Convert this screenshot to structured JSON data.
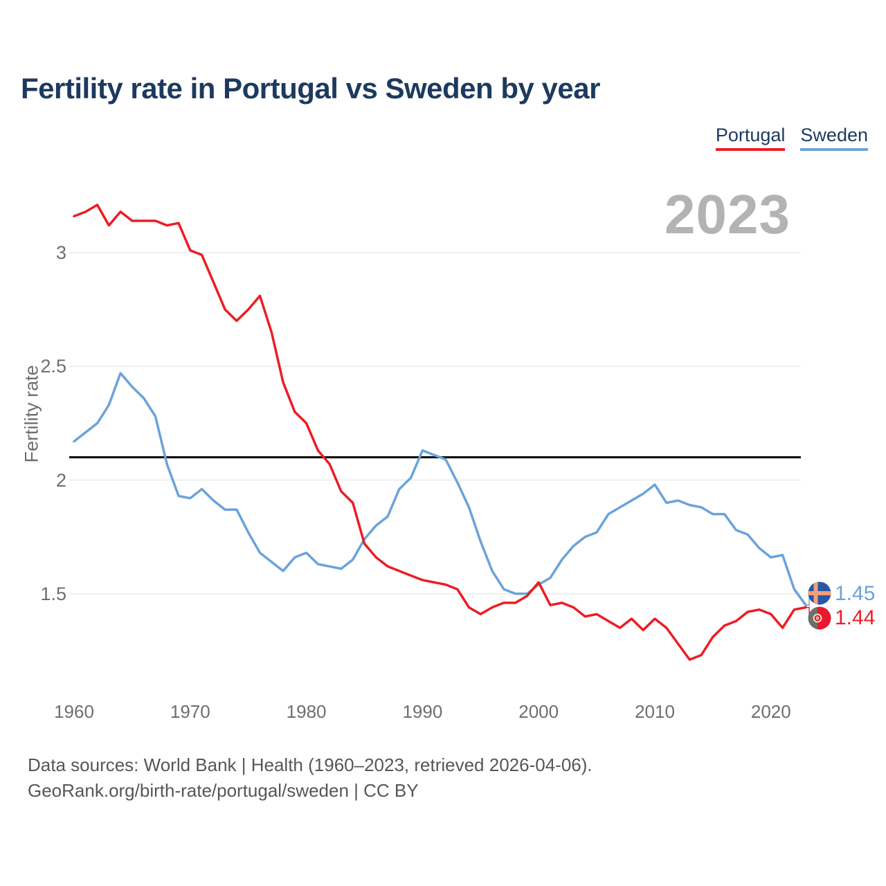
{
  "page": {
    "title": "Fertility rate in Portugal vs Sweden by year",
    "watermark_year": "2023",
    "footer_line1": "Data sources: World Bank | Health (1960–2023, retrieved 2026-04-06).",
    "footer_line2": "GeoRank.org/birth-rate/portugal/sweden | CC BY"
  },
  "legend": [
    {
      "label": "Portugal",
      "color": "#ed1c24"
    },
    {
      "label": "Sweden",
      "color": "#6aa3d9"
    }
  ],
  "chart_data": {
    "type": "line",
    "title": "Fertility rate in Portugal vs Sweden by year",
    "xlabel": "",
    "ylabel": "Fertility rate",
    "grid": "horizontal",
    "legend_position": "top-right",
    "watermark": "2023",
    "xlim": [
      1960,
      2023
    ],
    "ylim": [
      1.1,
      3.35
    ],
    "y_ticks": [
      3,
      2.5,
      2,
      1.5
    ],
    "y_tick_labels": [
      "3",
      "2.5",
      "2",
      "1.5"
    ],
    "x_ticks": [
      1960,
      1970,
      1980,
      1990,
      2000,
      2010,
      2020
    ],
    "x_tick_labels": [
      "1960",
      "1970",
      "1980",
      "1990",
      "2000",
      "2010",
      "2020"
    ],
    "reference_line": {
      "value": 2.1,
      "color": "#000000"
    },
    "x": [
      1960,
      1961,
      1962,
      1963,
      1964,
      1965,
      1966,
      1967,
      1968,
      1969,
      1970,
      1971,
      1972,
      1973,
      1974,
      1975,
      1976,
      1977,
      1978,
      1979,
      1980,
      1981,
      1982,
      1983,
      1984,
      1985,
      1986,
      1987,
      1988,
      1989,
      1990,
      1991,
      1992,
      1993,
      1994,
      1995,
      1996,
      1997,
      1998,
      1999,
      2000,
      2001,
      2002,
      2003,
      2004,
      2005,
      2006,
      2007,
      2008,
      2009,
      2010,
      2011,
      2012,
      2013,
      2014,
      2015,
      2016,
      2017,
      2018,
      2019,
      2020,
      2021,
      2022,
      2023
    ],
    "series": [
      {
        "name": "Portugal",
        "color": "#ed1c24",
        "end_label": "1.44",
        "flag": "portugal",
        "values": [
          3.16,
          3.18,
          3.21,
          3.12,
          3.18,
          3.14,
          3.14,
          3.14,
          3.12,
          3.13,
          3.01,
          2.99,
          2.87,
          2.75,
          2.7,
          2.75,
          2.81,
          2.65,
          2.43,
          2.3,
          2.25,
          2.13,
          2.07,
          1.95,
          1.9,
          1.72,
          1.66,
          1.62,
          1.6,
          1.58,
          1.56,
          1.55,
          1.54,
          1.52,
          1.44,
          1.41,
          1.44,
          1.46,
          1.46,
          1.49,
          1.55,
          1.45,
          1.46,
          1.44,
          1.4,
          1.41,
          1.38,
          1.35,
          1.39,
          1.34,
          1.39,
          1.35,
          1.28,
          1.21,
          1.23,
          1.31,
          1.36,
          1.38,
          1.42,
          1.43,
          1.41,
          1.35,
          1.43,
          1.44
        ]
      },
      {
        "name": "Sweden",
        "color": "#6aa3d9",
        "end_label": "1.45",
        "flag": "sweden",
        "values": [
          2.17,
          2.21,
          2.25,
          2.33,
          2.47,
          2.41,
          2.36,
          2.28,
          2.07,
          1.93,
          1.92,
          1.96,
          1.91,
          1.87,
          1.87,
          1.77,
          1.68,
          1.64,
          1.6,
          1.66,
          1.68,
          1.63,
          1.62,
          1.61,
          1.65,
          1.74,
          1.8,
          1.84,
          1.96,
          2.01,
          2.13,
          2.11,
          2.09,
          1.99,
          1.88,
          1.73,
          1.6,
          1.52,
          1.5,
          1.5,
          1.54,
          1.57,
          1.65,
          1.71,
          1.75,
          1.77,
          1.85,
          1.88,
          1.91,
          1.94,
          1.98,
          1.9,
          1.91,
          1.89,
          1.88,
          1.85,
          1.85,
          1.78,
          1.76,
          1.7,
          1.66,
          1.67,
          1.52,
          1.45
        ]
      }
    ]
  },
  "theme": {
    "title_color": "#1d3a5e",
    "tick_color": "#6e6e6e",
    "footer_color": "#565656",
    "watermark_color": "#b3b3b3",
    "gridline_color": "#e9e9e9"
  }
}
